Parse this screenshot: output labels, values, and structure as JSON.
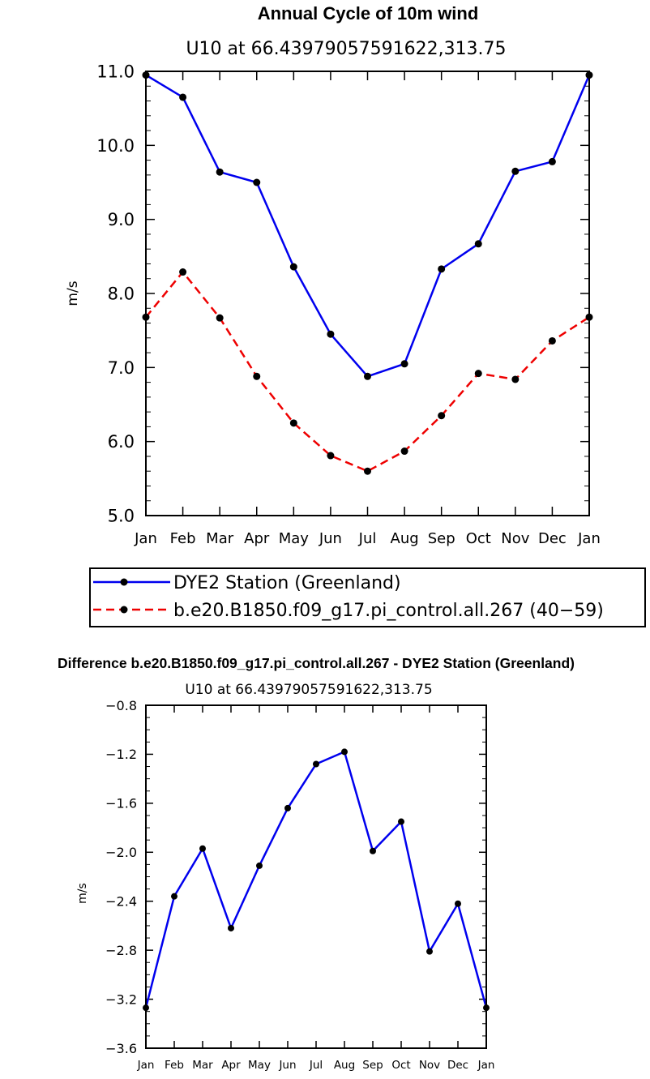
{
  "chart_data": [
    {
      "type": "line",
      "title": "Annual Cycle of 10m wind",
      "subtitle": "U10 at 66.43979057591622,313.75",
      "ylabel": "m/s",
      "xlabel": "",
      "ylim": [
        5.0,
        11.0
      ],
      "yticks": [
        "5.0",
        "6.0",
        "7.0",
        "8.0",
        "9.0",
        "10.0",
        "11.0"
      ],
      "categories": [
        "Jan",
        "Feb",
        "Mar",
        "Apr",
        "May",
        "Jun",
        "Jul",
        "Aug",
        "Sep",
        "Oct",
        "Nov",
        "Dec",
        "Jan"
      ],
      "series": [
        {
          "name": "DYE2 Station (Greenland)",
          "color": "#0000ee",
          "dash": "solid",
          "values": [
            10.95,
            10.65,
            9.64,
            9.5,
            8.36,
            7.45,
            6.88,
            7.05,
            8.33,
            8.67,
            9.65,
            9.78,
            10.95
          ]
        },
        {
          "name": "b.e20.B1850.f09_g17.pi_control.all.267 (40−59)",
          "color": "#ee0000",
          "dash": "dashed",
          "values": [
            7.68,
            8.29,
            7.67,
            6.88,
            6.25,
            5.81,
            5.6,
            5.87,
            6.35,
            6.92,
            6.84,
            7.36,
            7.68
          ]
        }
      ],
      "legend_placement": "bottom"
    },
    {
      "type": "line",
      "title": "Difference b.e20.B1850.f09_g17.pi_control.all.267 - DYE2 Station (Greenland)",
      "subtitle": "U10 at 66.43979057591622,313.75",
      "ylabel": "m/s",
      "xlabel": "",
      "ylim": [
        -3.6,
        -0.8
      ],
      "yticks": [
        "−3.6",
        "−3.2",
        "−2.8",
        "−2.4",
        "−2.0",
        "−1.6",
        "−1.2",
        "−0.8"
      ],
      "categories": [
        "Jan",
        "Feb",
        "Mar",
        "Apr",
        "May",
        "Jun",
        "Jul",
        "Aug",
        "Sep",
        "Oct",
        "Nov",
        "Dec",
        "Jan"
      ],
      "series": [
        {
          "color": "#0000ee",
          "dash": "solid",
          "values": [
            -3.27,
            -2.36,
            -1.97,
            -2.62,
            -2.11,
            -1.64,
            -1.28,
            -1.18,
            -1.99,
            -1.75,
            -2.81,
            -2.42,
            -3.27
          ]
        }
      ]
    }
  ]
}
